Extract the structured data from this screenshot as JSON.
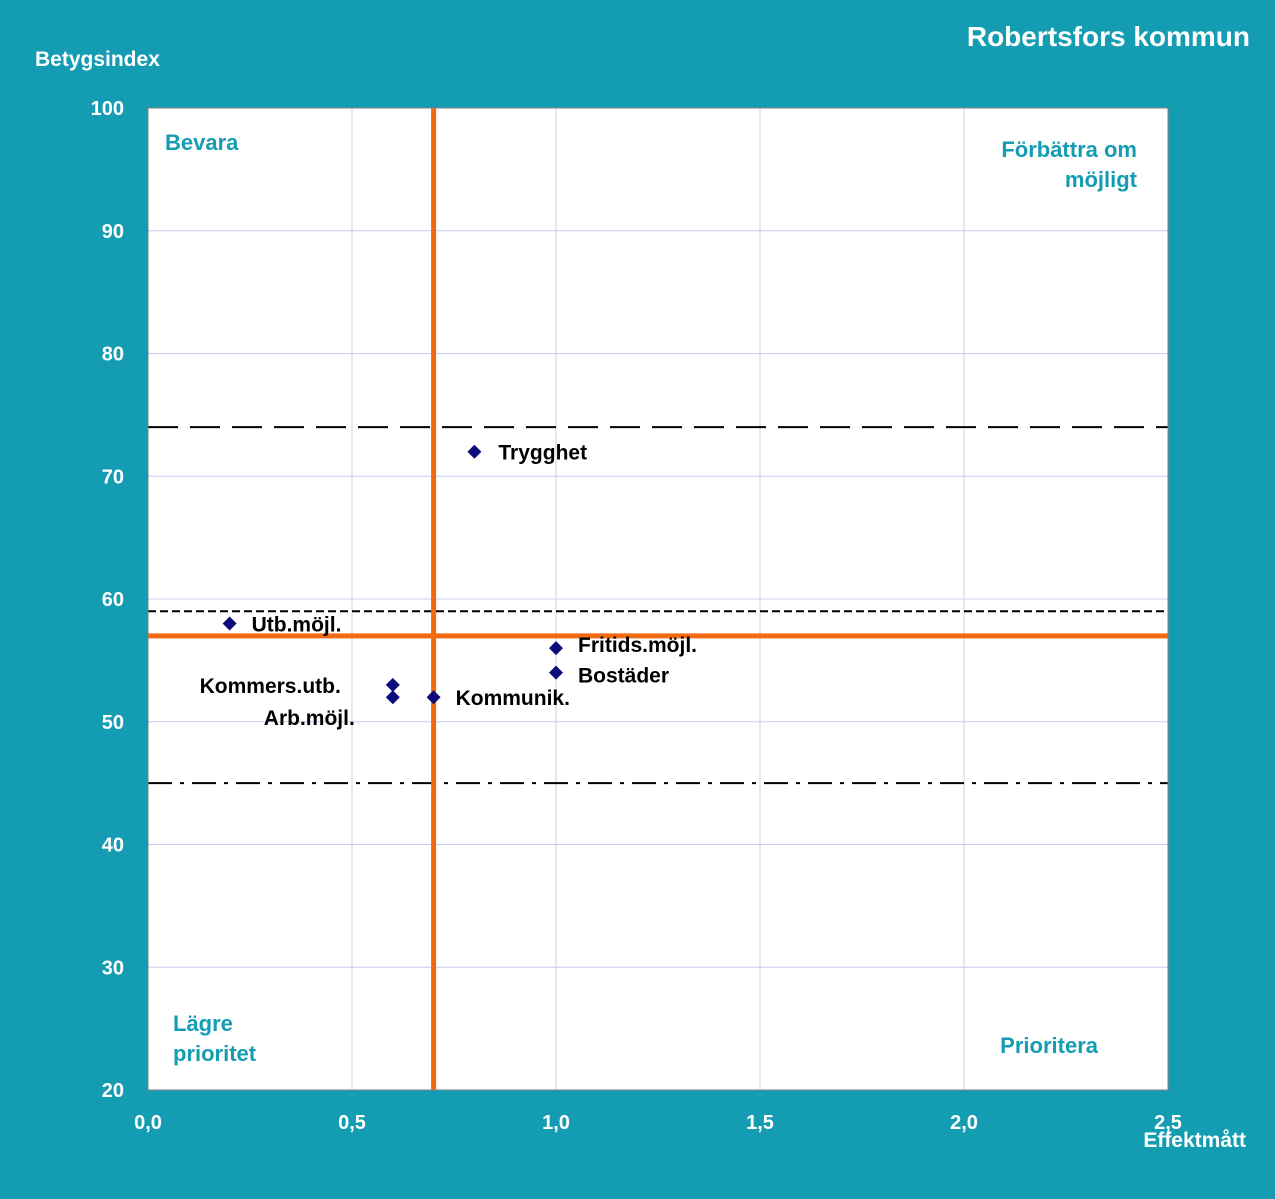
{
  "page_title": "Robertsfors kommun",
  "colors": {
    "background": "#149db2",
    "plot_background": "#ffffff",
    "grid": "#ccccee",
    "reference_line": "#f26a10",
    "marker": "#0c0c7a",
    "quadrant_label": "#149db2"
  },
  "chart_data": {
    "type": "scatter",
    "xlabel": "Effektmått",
    "ylabel": "Betygsindex",
    "xlim": [
      0,
      2.5
    ],
    "ylim": [
      20,
      100
    ],
    "x_ticks": [
      "0,0",
      "0,5",
      "1,0",
      "1,5",
      "2,0",
      "2,5"
    ],
    "y_ticks": [
      "20",
      "30",
      "40",
      "50",
      "60",
      "70",
      "80",
      "90",
      "100"
    ],
    "grid": true,
    "points": [
      {
        "label": "Trygghet",
        "x": 0.8,
        "y": 72
      },
      {
        "label": "Utb.möjl.",
        "x": 0.2,
        "y": 58
      },
      {
        "label": "Fritids.möjl.",
        "x": 1.0,
        "y": 56
      },
      {
        "label": "Bostäder",
        "x": 1.0,
        "y": 54
      },
      {
        "label": "Kommers.utb.",
        "x": 0.6,
        "y": 53
      },
      {
        "label": "Arb.möjl.",
        "x": 0.6,
        "y": 52
      },
      {
        "label": "Kommunik.",
        "x": 0.7,
        "y": 52
      }
    ],
    "reference_lines": {
      "vertical_x": 0.7,
      "horizontal_y": 57,
      "dashed_long_y": 74,
      "dashed_short_y": 59,
      "dash_dot_y": 45
    },
    "quadrants": {
      "top_left": [
        "Bevara"
      ],
      "top_right": [
        "Förbättra om",
        "möjligt"
      ],
      "bottom_left": [
        "Lägre",
        "prioritet"
      ],
      "bottom_right": [
        "Prioritera"
      ]
    }
  }
}
